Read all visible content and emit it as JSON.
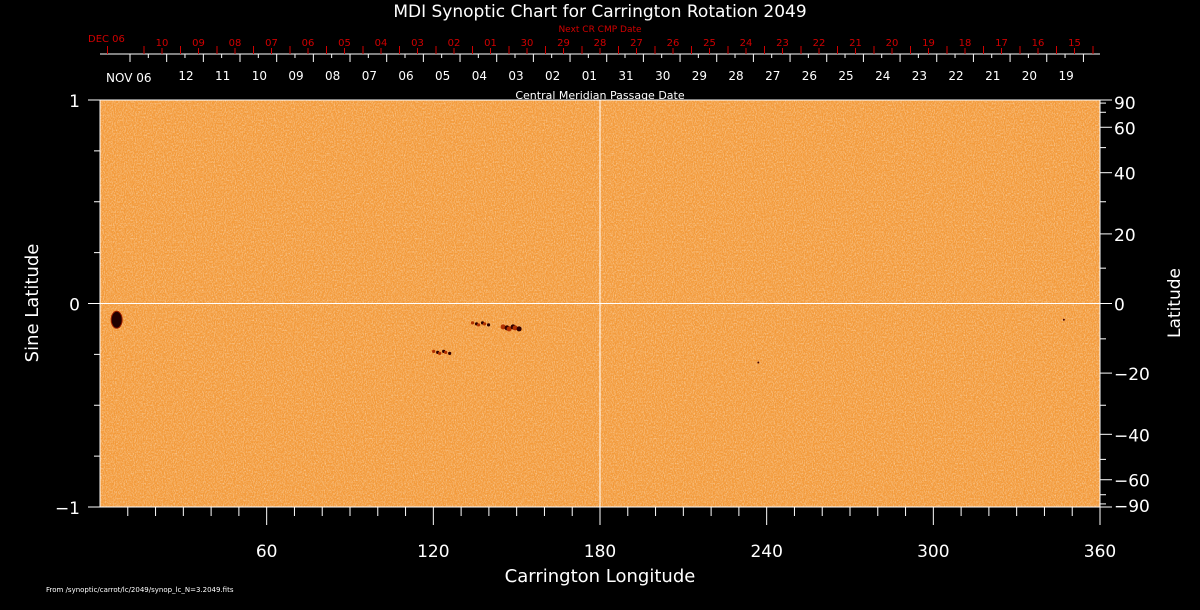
{
  "chart_data": {
    "type": "heatmap",
    "title": "MDI Synoptic Chart for Carrington Rotation 2049",
    "xlabel": "Carrington Longitude",
    "ylabel": "Sine Latitude",
    "ylabel_right": "Latitude",
    "xlim": [
      0,
      360
    ],
    "ylim": [
      -1,
      1
    ],
    "x_ticks": [
      "60",
      "120",
      "180",
      "240",
      "300",
      "360"
    ],
    "y_ticks_left": [
      "1",
      "0",
      "−1"
    ],
    "y_ticks_right": [
      "90",
      "60",
      "40",
      "20",
      "0",
      "−20",
      "−40",
      "−60",
      "−90"
    ],
    "y_ticks_right_values": [
      90,
      60,
      40,
      20,
      0,
      -20,
      -40,
      -60,
      -90
    ],
    "top_axis_label": "Central Meridian Passage Date",
    "top_axis_start": "NOV 06",
    "top_axis_dates": [
      "12",
      "11",
      "10",
      "09",
      "08",
      "07",
      "06",
      "05",
      "04",
      "03",
      "02",
      "01",
      "31",
      "30",
      "29",
      "28",
      "27",
      "26",
      "25",
      "24",
      "23",
      "22",
      "21",
      "20",
      "19"
    ],
    "next_axis_label": "Next CR CMP Date",
    "next_axis_start": "DEC 06",
    "next_axis_dates": [
      "10",
      "09",
      "08",
      "07",
      "06",
      "05",
      "04",
      "03",
      "02",
      "01",
      "30",
      "29",
      "28",
      "27",
      "26",
      "25",
      "24",
      "23",
      "22",
      "21",
      "20",
      "19",
      "18",
      "17",
      "16",
      "15"
    ],
    "features": [
      {
        "name": "sunspot-group",
        "lon": 6,
        "sinlat": -0.08
      },
      {
        "name": "active-region",
        "lon": 137,
        "sinlat": -0.1
      },
      {
        "name": "active-region",
        "lon": 148,
        "sinlat": -0.12
      },
      {
        "name": "active-region",
        "lon": 123,
        "sinlat": -0.24
      },
      {
        "name": "small-feature",
        "lon": 237,
        "sinlat": -0.29
      },
      {
        "name": "small-feature",
        "lon": 347,
        "sinlat": -0.08
      }
    ],
    "colors": {
      "background": "#f5a040",
      "negative": "#400000",
      "positive": "#ffffff"
    }
  },
  "footer": "From /synoptic/carrot/lc/2049/synop_lc_N=3.2049.fits"
}
